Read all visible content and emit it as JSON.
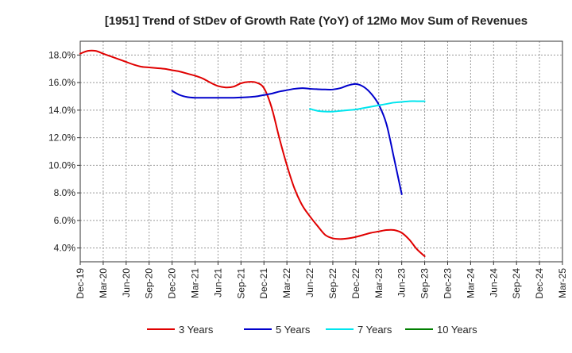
{
  "chart_data": {
    "type": "line",
    "title": "[1951]  Trend of StDev of Growth Rate (YoY) of 12Mo Mov Sum of Revenues",
    "xlabel": "",
    "ylabel": "",
    "ylim": [
      3.0,
      19.0
    ],
    "y_ticks": [
      4.0,
      6.0,
      8.0,
      10.0,
      12.0,
      14.0,
      16.0,
      18.0
    ],
    "y_tick_labels": [
      "4.0%",
      "6.0%",
      "8.0%",
      "10.0%",
      "12.0%",
      "14.0%",
      "16.0%",
      "18.0%"
    ],
    "x_tick_labels": [
      "Dec-19",
      "Mar-20",
      "Jun-20",
      "Sep-20",
      "Dec-20",
      "Mar-21",
      "Jun-21",
      "Sep-21",
      "Dec-21",
      "Mar-22",
      "Jun-22",
      "Sep-22",
      "Dec-22",
      "Mar-23",
      "Jun-23",
      "Sep-23",
      "Dec-23",
      "Mar-24",
      "Jun-24",
      "Sep-24",
      "Dec-24",
      "Mar-25"
    ],
    "grid": true,
    "legend_position": "bottom",
    "series": [
      {
        "name": "3 Years",
        "color": "#e00000",
        "start_index": 0,
        "values": [
          18.1,
          18.3,
          18.3,
          18.1,
          17.9,
          17.7,
          17.5,
          17.3,
          17.15,
          17.1,
          17.05,
          17.0,
          16.9,
          16.8,
          16.65,
          16.5,
          16.3,
          16.0,
          15.75,
          15.65,
          15.7,
          15.95,
          16.05,
          16.0,
          15.6,
          14.2,
          12.0,
          10.0,
          8.3,
          7.1,
          6.3,
          5.6,
          4.95,
          4.7,
          4.65,
          4.7,
          4.8,
          4.95,
          5.1,
          5.2,
          5.3,
          5.3,
          5.1,
          4.6,
          3.9,
          3.4
        ]
      },
      {
        "name": "5 Years",
        "color": "#0000cc",
        "start_index": 12,
        "values": [
          15.4,
          15.1,
          14.95,
          14.9,
          14.9,
          14.9,
          14.9,
          14.9,
          14.9,
          14.92,
          14.95,
          15.0,
          15.1,
          15.2,
          15.35,
          15.45,
          15.55,
          15.6,
          15.55,
          15.52,
          15.5,
          15.5,
          15.6,
          15.8,
          15.9,
          15.7,
          15.2,
          14.4,
          13.0,
          10.5,
          7.9
        ]
      },
      {
        "name": "7 Years",
        "color": "#00e5ee",
        "start_index": 30,
        "values": [
          14.1,
          13.95,
          13.9,
          13.9,
          13.95,
          14.0,
          14.05,
          14.15,
          14.25,
          14.35,
          14.45,
          14.55,
          14.6,
          14.65,
          14.65,
          14.65
        ]
      },
      {
        "name": "10 Years",
        "color": "#007f00",
        "start_index": 0,
        "values": []
      }
    ]
  }
}
